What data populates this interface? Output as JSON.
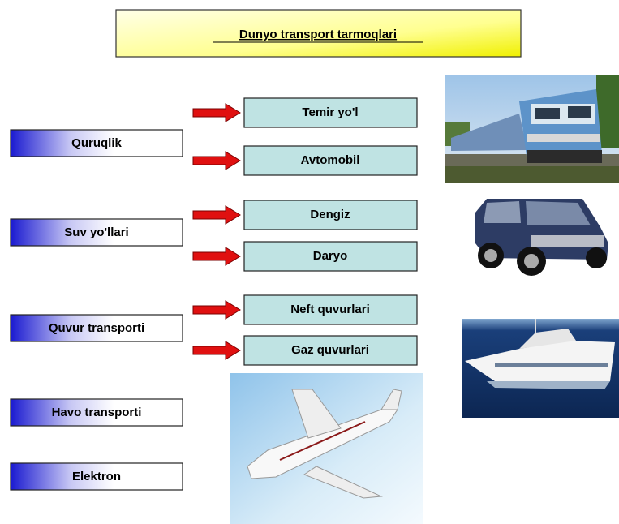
{
  "title": "Dunyo transport tarmoqlari",
  "groups": [
    {
      "label": "Quruqlik",
      "items": [
        "Temir yo'l",
        "Avtomobil"
      ]
    },
    {
      "label": "Suv yo'llari",
      "items": [
        "Dengiz",
        "Daryo"
      ]
    },
    {
      "label": "Quvur transporti",
      "items": [
        "Neft quvurlari",
        "Gaz quvurlari"
      ]
    },
    {
      "label": "Havo transporti",
      "items": []
    },
    {
      "label": "Elektron",
      "items": []
    }
  ]
}
